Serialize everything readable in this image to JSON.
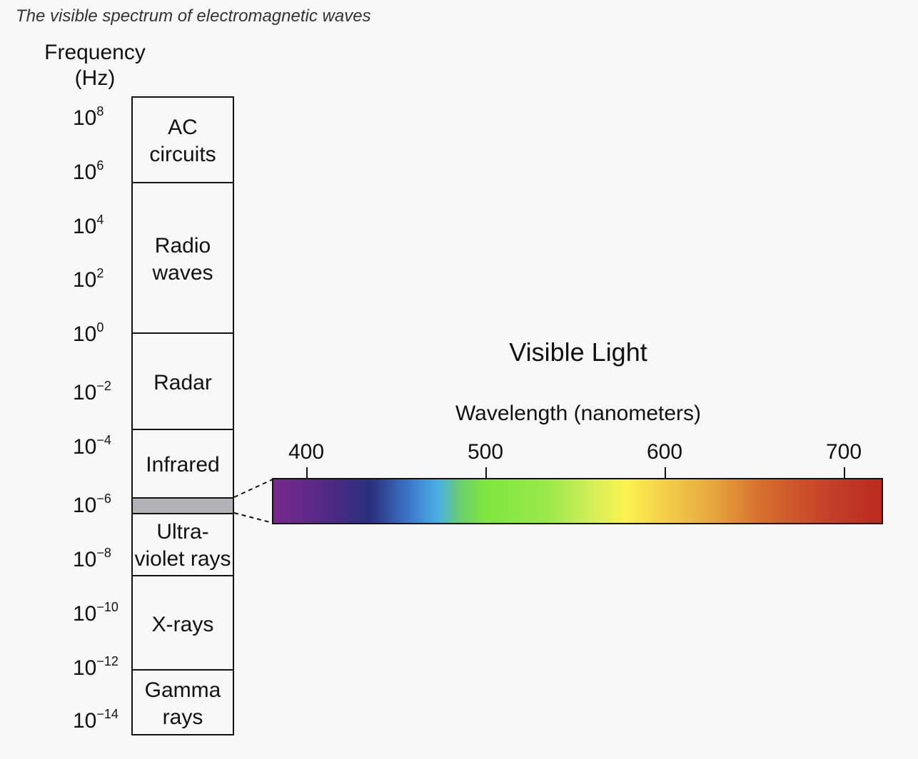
{
  "caption": "The visible spectrum of electromagnetic waves",
  "frequency_axis": {
    "title_line1": "Frequency",
    "title_line2": "(Hz)",
    "ticks": [
      {
        "base": "10",
        "exp": "8"
      },
      {
        "base": "10",
        "exp": "6"
      },
      {
        "base": "10",
        "exp": "4"
      },
      {
        "base": "10",
        "exp": "2"
      },
      {
        "base": "10",
        "exp": "0"
      },
      {
        "base": "10",
        "exp": "−2"
      },
      {
        "base": "10",
        "exp": "−4"
      },
      {
        "base": "10",
        "exp": "−6"
      },
      {
        "base": "10",
        "exp": "−8"
      },
      {
        "base": "10",
        "exp": "−10"
      },
      {
        "base": "10",
        "exp": "−12"
      },
      {
        "base": "10",
        "exp": "−14"
      }
    ]
  },
  "bands": [
    {
      "line1": "AC",
      "line2": "circuits"
    },
    {
      "line1": "Radio",
      "line2": "waves"
    },
    {
      "line1": "Radar",
      "line2": ""
    },
    {
      "line1": "Infrared",
      "line2": ""
    },
    {
      "line1": "Ultra-",
      "line2": "violet rays"
    },
    {
      "line1": "X-rays",
      "line2": ""
    },
    {
      "line1": "Gamma",
      "line2": "rays"
    }
  ],
  "visible_light": {
    "title": "Visible Light",
    "axis_title": "Wavelength (nanometers)",
    "ticks": [
      "400",
      "500",
      "600",
      "700"
    ]
  },
  "colors": {
    "visible_strip": "#b3b3b5",
    "line": "#111111"
  }
}
